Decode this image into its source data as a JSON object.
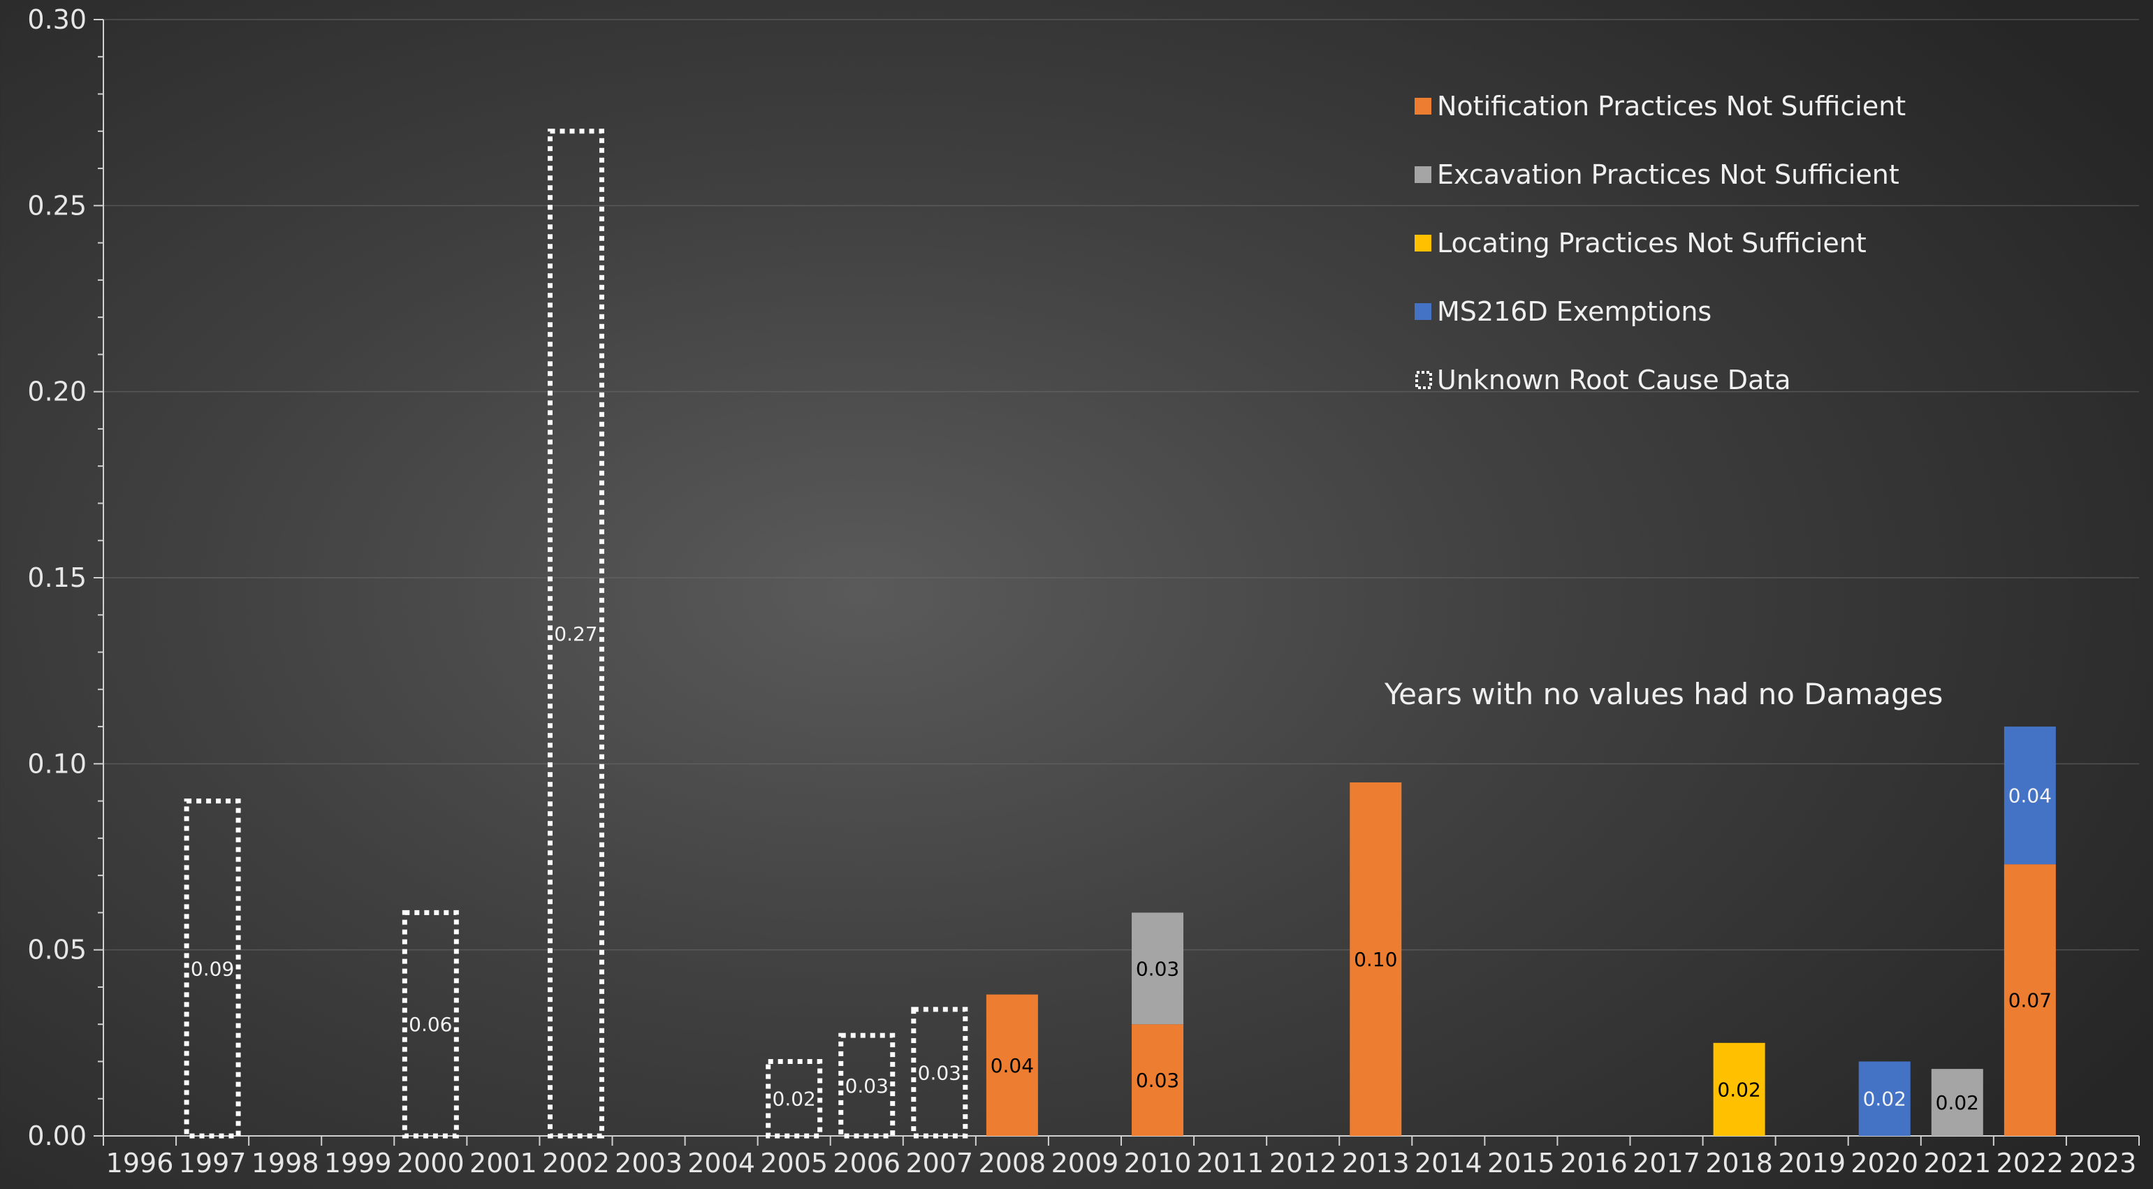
{
  "chart_data": {
    "type": "bar",
    "stacked": true,
    "categories": [
      "1996",
      "1997",
      "1998",
      "1999",
      "2000",
      "2001",
      "2002",
      "2003",
      "2004",
      "2005",
      "2006",
      "2007",
      "2008",
      "2009",
      "2010",
      "2011",
      "2012",
      "2013",
      "2014",
      "2015",
      "2016",
      "2017",
      "2018",
      "2019",
      "2020",
      "2021",
      "2022",
      "2023"
    ],
    "ylim": [
      0,
      0.3
    ],
    "yticks": [
      "0.00",
      "0.05",
      "0.10",
      "0.15",
      "0.20",
      "0.25",
      "0.30"
    ],
    "grid": true,
    "legend_position": "top-right",
    "series": [
      {
        "name": "Notification Practices Not Sufficient",
        "color": "#ED7D31",
        "style": "solid",
        "values": [
          null,
          null,
          null,
          null,
          null,
          null,
          null,
          null,
          null,
          null,
          null,
          null,
          0.038,
          null,
          0.03,
          null,
          null,
          0.095,
          null,
          null,
          null,
          null,
          null,
          null,
          null,
          null,
          0.073,
          null
        ],
        "labels": [
          null,
          null,
          null,
          null,
          null,
          null,
          null,
          null,
          null,
          null,
          null,
          null,
          "0.04",
          null,
          "0.03",
          null,
          null,
          "0.10",
          null,
          null,
          null,
          null,
          null,
          null,
          null,
          null,
          "0.07",
          null
        ]
      },
      {
        "name": "Excavation Practices Not Sufficient",
        "color": "#A5A5A5",
        "style": "solid",
        "values": [
          null,
          null,
          null,
          null,
          null,
          null,
          null,
          null,
          null,
          null,
          null,
          null,
          null,
          null,
          0.03,
          null,
          null,
          null,
          null,
          null,
          null,
          null,
          null,
          null,
          null,
          0.018,
          null,
          null
        ],
        "labels": [
          null,
          null,
          null,
          null,
          null,
          null,
          null,
          null,
          null,
          null,
          null,
          null,
          null,
          null,
          "0.03",
          null,
          null,
          null,
          null,
          null,
          null,
          null,
          null,
          null,
          null,
          "0.02",
          null,
          null
        ]
      },
      {
        "name": "Locating Practices Not Sufficient",
        "color": "#FFC000",
        "style": "solid",
        "values": [
          null,
          null,
          null,
          null,
          null,
          null,
          null,
          null,
          null,
          null,
          null,
          null,
          null,
          null,
          null,
          null,
          null,
          null,
          null,
          null,
          null,
          null,
          0.025,
          null,
          null,
          null,
          null,
          null
        ],
        "labels": [
          null,
          null,
          null,
          null,
          null,
          null,
          null,
          null,
          null,
          null,
          null,
          null,
          null,
          null,
          null,
          null,
          null,
          null,
          null,
          null,
          null,
          null,
          "0.02",
          null,
          null,
          null,
          null,
          null
        ]
      },
      {
        "name": "MS216D Exemptions",
        "color": "#4472C4",
        "style": "solid",
        "values": [
          null,
          null,
          null,
          null,
          null,
          null,
          null,
          null,
          null,
          null,
          null,
          null,
          null,
          null,
          null,
          null,
          null,
          null,
          null,
          null,
          null,
          null,
          null,
          null,
          0.02,
          null,
          0.037,
          null
        ],
        "labels": [
          null,
          null,
          null,
          null,
          null,
          null,
          null,
          null,
          null,
          null,
          null,
          null,
          null,
          null,
          null,
          null,
          null,
          null,
          null,
          null,
          null,
          null,
          null,
          null,
          "0.02",
          null,
          "0.04",
          null
        ]
      },
      {
        "name": "Unknown Root Cause Data",
        "color": "#FFFFFF",
        "style": "dotted-outline",
        "values": [
          null,
          0.09,
          null,
          null,
          0.06,
          null,
          0.27,
          null,
          null,
          0.02,
          0.027,
          0.034,
          null,
          null,
          null,
          null,
          null,
          null,
          null,
          null,
          null,
          null,
          null,
          null,
          null,
          null,
          null,
          null
        ],
        "labels": [
          null,
          "0.09",
          null,
          null,
          "0.06",
          null,
          "0.27",
          null,
          null,
          "0.02",
          "0.03",
          "0.03",
          null,
          null,
          null,
          null,
          null,
          null,
          null,
          null,
          null,
          null,
          null,
          null,
          null,
          null,
          null,
          null
        ]
      }
    ],
    "annotations": [
      "Years with no values had no Damages"
    ]
  }
}
